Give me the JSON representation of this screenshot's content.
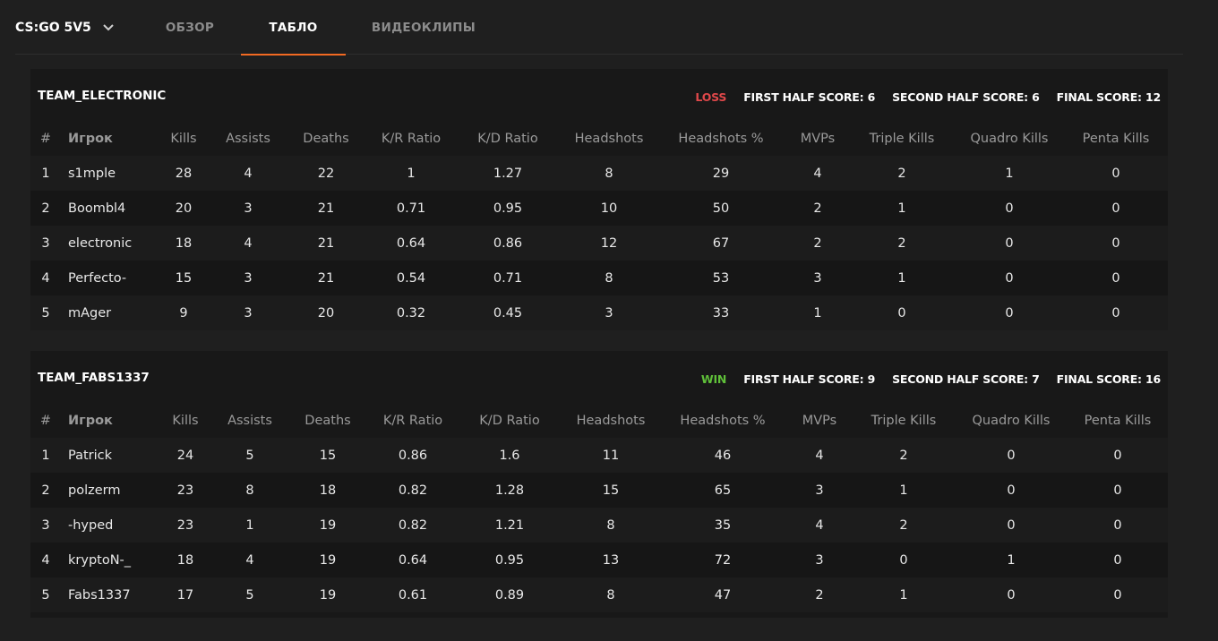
{
  "nav": {
    "game": "CS:GO 5V5",
    "tabs": [
      {
        "label": "ОБЗОР",
        "active": false
      },
      {
        "label": "ТАБЛО",
        "active": true
      },
      {
        "label": "ВИДЕОКЛИПЫ",
        "active": false
      }
    ]
  },
  "columns": [
    "#",
    "Игрок",
    "Kills",
    "Assists",
    "Deaths",
    "K/R Ratio",
    "K/D Ratio",
    "Headshots",
    "Headshots %",
    "MVPs",
    "Triple Kills",
    "Quadro Kills",
    "Penta Kills"
  ],
  "teams": [
    {
      "name": "TEAM_ELECTRONIC",
      "result": "LOSS",
      "first_half": "FIRST HALF SCORE: 6",
      "second_half": "SECOND HALF SCORE: 6",
      "final": "FINAL SCORE: 12",
      "players": [
        [
          "1",
          "s1mple",
          "28",
          "4",
          "22",
          "1",
          "1.27",
          "8",
          "29",
          "4",
          "2",
          "1",
          "0"
        ],
        [
          "2",
          "Boombl4",
          "20",
          "3",
          "21",
          "0.71",
          "0.95",
          "10",
          "50",
          "2",
          "1",
          "0",
          "0"
        ],
        [
          "3",
          "electronic",
          "18",
          "4",
          "21",
          "0.64",
          "0.86",
          "12",
          "67",
          "2",
          "2",
          "0",
          "0"
        ],
        [
          "4",
          "Perfecto-",
          "15",
          "3",
          "21",
          "0.54",
          "0.71",
          "8",
          "53",
          "3",
          "1",
          "0",
          "0"
        ],
        [
          "5",
          "mAger",
          "9",
          "3",
          "20",
          "0.32",
          "0.45",
          "3",
          "33",
          "1",
          "0",
          "0",
          "0"
        ]
      ]
    },
    {
      "name": "TEAM_FABS1337",
      "result": "WIN",
      "first_half": "FIRST HALF SCORE: 9",
      "second_half": "SECOND HALF SCORE: 7",
      "final": "FINAL SCORE: 16",
      "players": [
        [
          "1",
          "Patrick",
          "24",
          "5",
          "15",
          "0.86",
          "1.6",
          "11",
          "46",
          "4",
          "2",
          "0",
          "0"
        ],
        [
          "2",
          "polzerm",
          "23",
          "8",
          "18",
          "0.82",
          "1.28",
          "15",
          "65",
          "3",
          "1",
          "0",
          "0"
        ],
        [
          "3",
          "-hyped",
          "23",
          "1",
          "19",
          "0.82",
          "1.21",
          "8",
          "35",
          "4",
          "2",
          "0",
          "0"
        ],
        [
          "4",
          "kryptoN-_",
          "18",
          "4",
          "19",
          "0.64",
          "0.95",
          "13",
          "72",
          "3",
          "0",
          "1",
          "0"
        ],
        [
          "5",
          "Fabs1337",
          "17",
          "5",
          "19",
          "0.61",
          "0.89",
          "8",
          "47",
          "2",
          "1",
          "0",
          "0"
        ]
      ]
    }
  ],
  "colors": {
    "accent": "#f26a22",
    "loss": "#e0484a",
    "win": "#5fbf39"
  }
}
